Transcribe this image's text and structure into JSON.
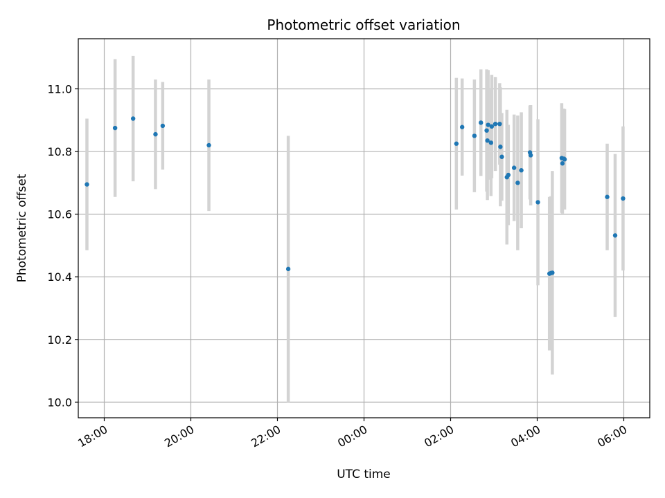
{
  "chart_data": {
    "type": "scatter",
    "title": "Photometric offset variation",
    "xlabel": "UTC time",
    "ylabel": "Photometric offset",
    "x_tick_labels": [
      "18:00",
      "20:00",
      "22:00",
      "00:00",
      "02:00",
      "04:00",
      "06:00"
    ],
    "x_tick_hours": [
      18,
      20,
      22,
      24,
      26,
      28,
      30
    ],
    "y_ticks": [
      10.0,
      10.2,
      10.4,
      10.6,
      10.8,
      11.0
    ],
    "y_tick_labels": [
      "10.0",
      "10.2",
      "10.4",
      "10.6",
      "10.8",
      "11.0"
    ],
    "xlim_hours": [
      17.4,
      30.6
    ],
    "ylim": [
      9.95,
      11.16
    ],
    "grid": true,
    "errorbar_color": "#d3d3d3",
    "point_color": "#1f77b4",
    "points": [
      {
        "t": "17:36",
        "y": 10.695,
        "err": 0.21
      },
      {
        "t": "18:15",
        "y": 10.875,
        "err": 0.22
      },
      {
        "t": "18:40",
        "y": 10.905,
        "err": 0.2
      },
      {
        "t": "19:11",
        "y": 10.855,
        "err": 0.175
      },
      {
        "t": "19:21",
        "y": 10.882,
        "err": 0.14
      },
      {
        "t": "20:25",
        "y": 10.82,
        "err": 0.21
      },
      {
        "t": "22:15",
        "y": 10.425,
        "err": 0.425
      },
      {
        "t": "02:08",
        "y": 10.825,
        "err": 0.21
      },
      {
        "t": "02:16",
        "y": 10.878,
        "err": 0.155
      },
      {
        "t": "02:33",
        "y": 10.85,
        "err": 0.18
      },
      {
        "t": "02:42",
        "y": 10.892,
        "err": 0.17
      },
      {
        "t": "02:50",
        "y": 10.867,
        "err": 0.195
      },
      {
        "t": "02:51",
        "y": 10.835,
        "err": 0.19
      },
      {
        "t": "02:52",
        "y": 10.885,
        "err": 0.175
      },
      {
        "t": "02:56",
        "y": 10.828,
        "err": 0.17
      },
      {
        "t": "02:57",
        "y": 10.88,
        "err": 0.165
      },
      {
        "t": "03:02",
        "y": 10.888,
        "err": 0.15
      },
      {
        "t": "03:08",
        "y": 10.888,
        "err": 0.13
      },
      {
        "t": "03:09",
        "y": 10.815,
        "err": 0.19
      },
      {
        "t": "03:11",
        "y": 10.783,
        "err": 0.14
      },
      {
        "t": "03:18",
        "y": 10.718,
        "err": 0.215
      },
      {
        "t": "03:20",
        "y": 10.725,
        "err": 0.16
      },
      {
        "t": "03:28",
        "y": 10.748,
        "err": 0.17
      },
      {
        "t": "03:33",
        "y": 10.7,
        "err": 0.215
      },
      {
        "t": "03:38",
        "y": 10.74,
        "err": 0.185
      },
      {
        "t": "03:50",
        "y": 10.797,
        "err": 0.15
      },
      {
        "t": "03:51",
        "y": 10.788,
        "err": 0.16
      },
      {
        "t": "04:01",
        "y": 10.638,
        "err": 0.265
      },
      {
        "t": "04:17",
        "y": 10.41,
        "err": 0.245
      },
      {
        "t": "04:19",
        "y": 10.412,
        "err": 0.245
      },
      {
        "t": "04:21",
        "y": 10.413,
        "err": 0.325
      },
      {
        "t": "04:34",
        "y": 10.779,
        "err": 0.175
      },
      {
        "t": "04:35",
        "y": 10.762,
        "err": 0.16
      },
      {
        "t": "04:37",
        "y": 10.777,
        "err": 0.16
      },
      {
        "t": "04:38",
        "y": 10.775,
        "err": 0.16
      },
      {
        "t": "05:37",
        "y": 10.655,
        "err": 0.17
      },
      {
        "t": "05:48",
        "y": 10.532,
        "err": 0.26
      },
      {
        "t": "05:59",
        "y": 10.65,
        "err": 0.23
      }
    ]
  }
}
